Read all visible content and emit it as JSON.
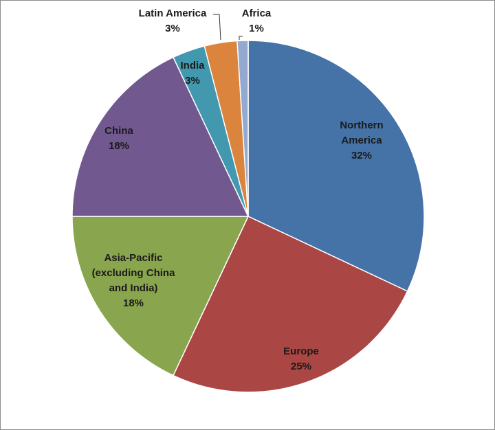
{
  "chart_data": {
    "type": "pie",
    "categories": [
      "Northern America",
      "Europe",
      "Asia-Pacific (excluding China and India)",
      "China",
      "India",
      "Latin America",
      "Africa"
    ],
    "values": [
      32,
      25,
      18,
      18,
      3,
      3,
      1
    ],
    "value_labels": [
      "32%",
      "25%",
      "18%",
      "18%",
      "3%",
      "3%",
      "1%"
    ],
    "colors": [
      "#4572A7",
      "#AA4643",
      "#89A54E",
      "#71588F",
      "#4198AF",
      "#DB843D",
      "#93A9CF"
    ]
  }
}
